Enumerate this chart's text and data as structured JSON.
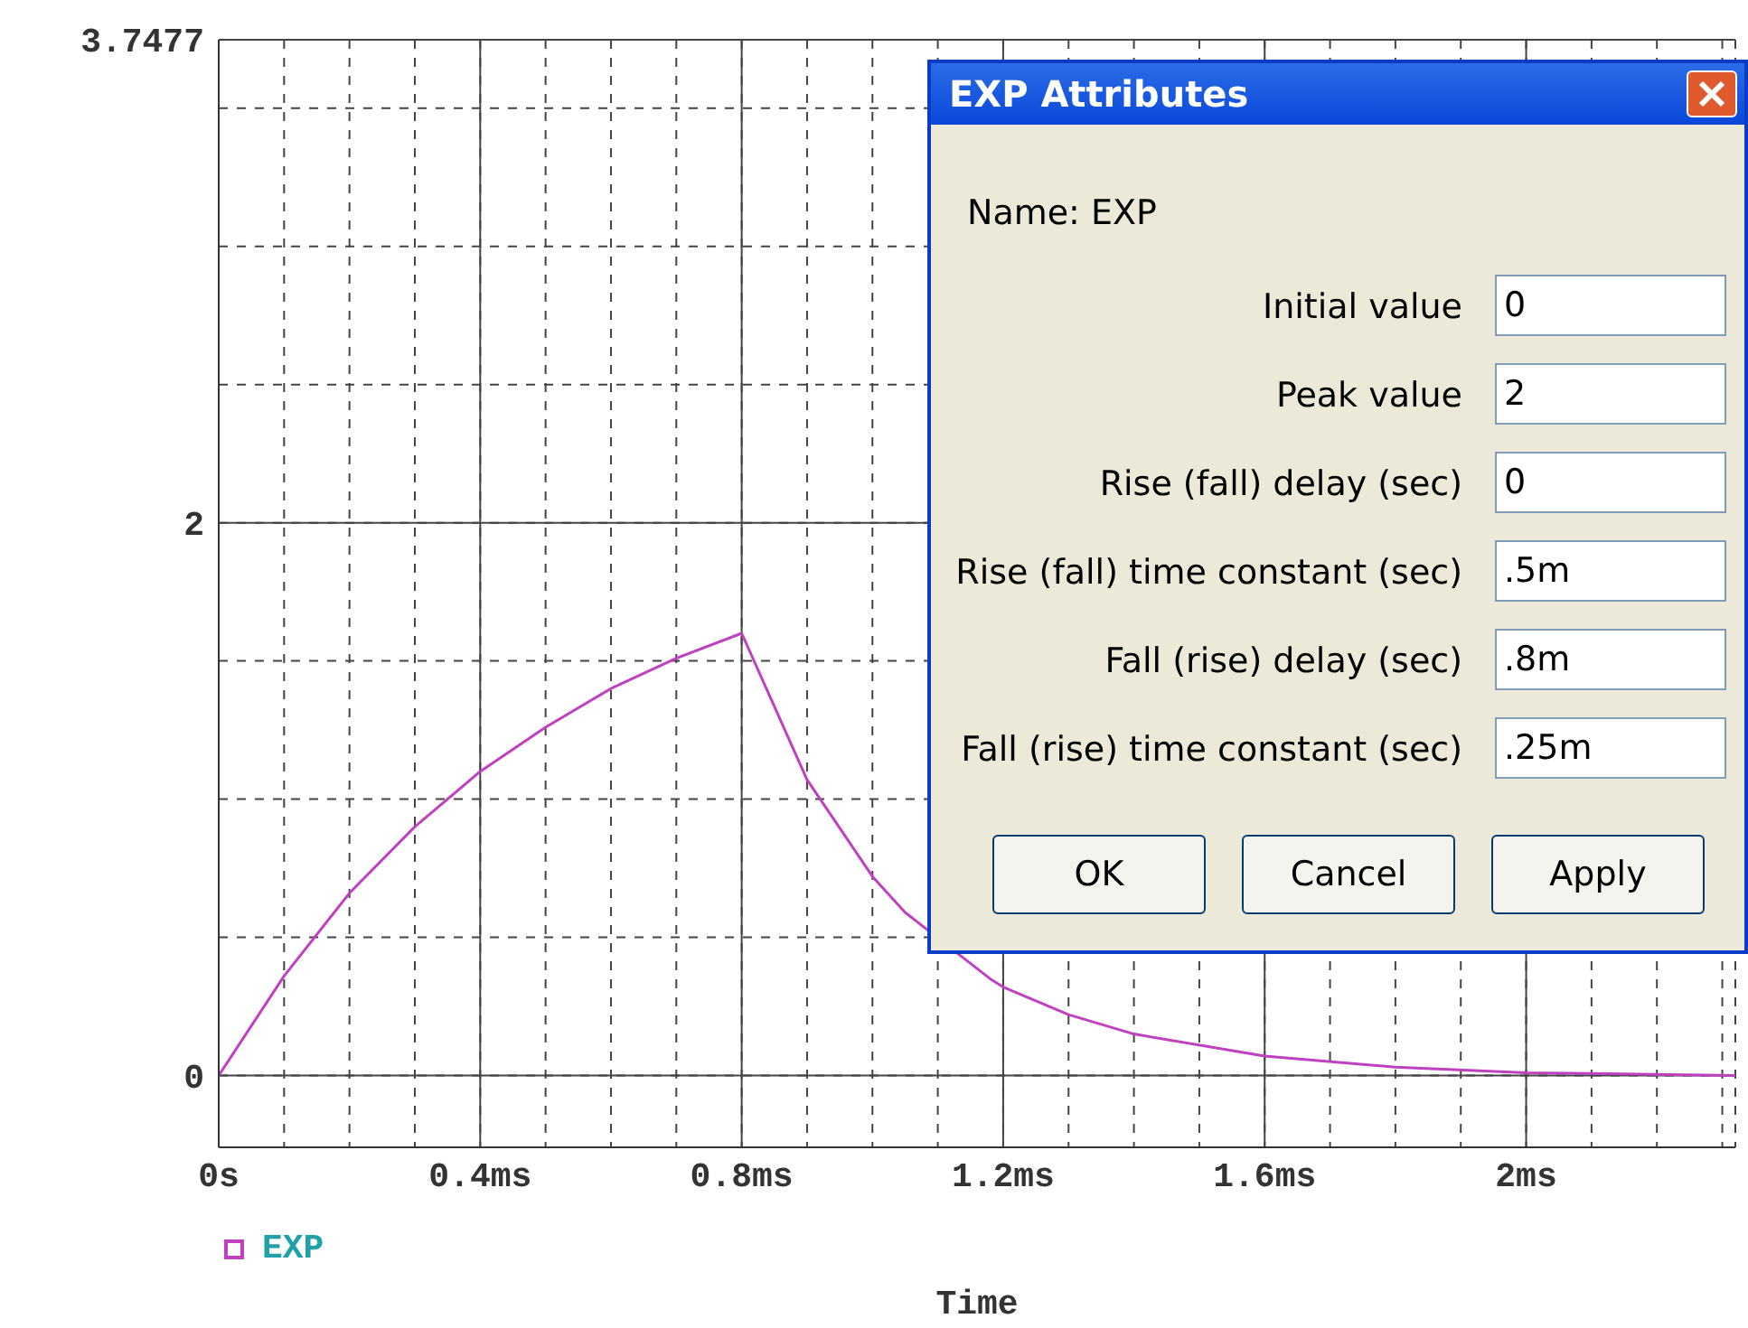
{
  "chart_data": {
    "type": "line",
    "xlabel": "Time",
    "x": [
      0,
      0.1,
      0.2,
      0.3,
      0.4,
      0.5,
      0.6,
      0.7,
      0.8,
      0.9,
      1.0,
      1.05,
      1.18,
      1.2,
      1.3,
      1.4,
      1.6,
      1.8,
      2.0,
      2.32
    ],
    "series": [
      {
        "name": "EXP",
        "color": "#c040c0",
        "values": [
          0,
          0.36,
          0.66,
          0.9,
          1.1,
          1.26,
          1.4,
          1.51,
          1.6,
          1.07,
          0.72,
          0.59,
          0.35,
          0.32,
          0.22,
          0.15,
          0.07,
          0.03,
          0.01,
          0
        ]
      }
    ],
    "xlim": [
      0,
      2.32
    ],
    "xticks": [
      {
        "value": 0,
        "label": "0s"
      },
      {
        "value": 0.1,
        "label": null
      },
      {
        "value": 0.2,
        "label": null
      },
      {
        "value": 0.3,
        "label": null
      },
      {
        "value": 0.4,
        "label": "0.4ms"
      },
      {
        "value": 0.5,
        "label": null
      },
      {
        "value": 0.6,
        "label": null
      },
      {
        "value": 0.7,
        "label": null
      },
      {
        "value": 0.8,
        "label": "0.8ms"
      },
      {
        "value": 0.9,
        "label": null
      },
      {
        "value": 1.0,
        "label": null
      },
      {
        "value": 1.1,
        "label": null
      },
      {
        "value": 1.2,
        "label": "1.2ms"
      },
      {
        "value": 1.3,
        "label": null
      },
      {
        "value": 1.4,
        "label": null
      },
      {
        "value": 1.5,
        "label": null
      },
      {
        "value": 1.6,
        "label": "1.6ms"
      },
      {
        "value": 1.7,
        "label": null
      },
      {
        "value": 1.8,
        "label": null
      },
      {
        "value": 1.9,
        "label": null
      },
      {
        "value": 2.0,
        "label": "2ms"
      },
      {
        "value": 2.1,
        "label": null
      },
      {
        "value": 2.2,
        "label": null
      },
      {
        "value": 2.3,
        "label": null
      }
    ],
    "ylim": [
      -0.26,
      3.7477
    ],
    "yticks": [
      0,
      {
        "value": 0.5,
        "label": null
      },
      {
        "value": 1,
        "label": null
      },
      {
        "value": 1.5,
        "label": null
      },
      2,
      {
        "value": 2.5,
        "label": null
      },
      {
        "value": 3,
        "label": null
      },
      {
        "value": 3.5,
        "label": null
      },
      3.7477
    ],
    "grid": true,
    "legend": "bottom left",
    "marker": "none",
    "line_style": "solid",
    "annotations": [
      "EXP Attributes",
      "Name:  EXP",
      "Initial value",
      "Peak value",
      "Rise (fall) delay (sec)",
      "Rise (fall) time constant (sec)",
      "Fall (rise) delay (sec)",
      "Fall (rise) time constant (sec)",
      "0",
      "2",
      "0",
      ".5m",
      ".8m",
      ".25m",
      "OK",
      "Cancel",
      "Apply"
    ]
  }
}
